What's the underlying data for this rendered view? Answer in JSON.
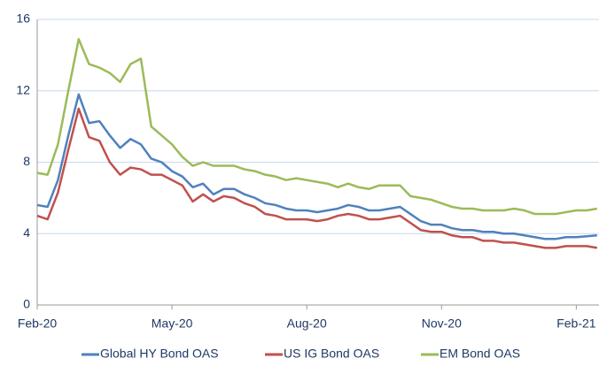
{
  "chart_data": {
    "type": "line",
    "categories": [
      "Feb-20",
      null,
      null,
      null,
      null,
      null,
      null,
      null,
      null,
      null,
      null,
      null,
      null,
      "May-20",
      null,
      null,
      null,
      null,
      null,
      null,
      null,
      null,
      null,
      null,
      null,
      null,
      "Aug-20",
      null,
      null,
      null,
      null,
      null,
      null,
      null,
      null,
      null,
      null,
      null,
      null,
      "Nov-20",
      null,
      null,
      null,
      null,
      null,
      null,
      null,
      null,
      null,
      null,
      null,
      null,
      "Feb-21",
      null,
      null
    ],
    "series": [
      {
        "name": "Global HY Bond OAS",
        "color": "#4f81bd",
        "values": [
          5.6,
          5.5,
          7.0,
          9.5,
          11.8,
          10.2,
          10.3,
          9.5,
          8.8,
          9.3,
          9.0,
          8.2,
          8.0,
          7.5,
          7.2,
          6.6,
          6.8,
          6.2,
          6.5,
          6.5,
          6.2,
          6.0,
          5.7,
          5.6,
          5.4,
          5.3,
          5.3,
          5.2,
          5.3,
          5.4,
          5.6,
          5.5,
          5.3,
          5.3,
          5.4,
          5.5,
          5.1,
          4.7,
          4.5,
          4.5,
          4.3,
          4.2,
          4.2,
          4.1,
          4.1,
          4.0,
          4.0,
          3.9,
          3.8,
          3.7,
          3.7,
          3.8,
          3.8,
          3.85,
          3.9
        ]
      },
      {
        "name": "US IG Bond OAS",
        "color": "#c0504d",
        "values": [
          5.0,
          4.8,
          6.3,
          8.7,
          11.0,
          9.4,
          9.2,
          8.0,
          7.3,
          7.7,
          7.6,
          7.3,
          7.3,
          7.0,
          6.7,
          5.8,
          6.2,
          5.8,
          6.1,
          6.0,
          5.7,
          5.5,
          5.1,
          5.0,
          4.8,
          4.8,
          4.8,
          4.7,
          4.8,
          5.0,
          5.1,
          5.0,
          4.8,
          4.8,
          4.9,
          5.0,
          4.6,
          4.2,
          4.1,
          4.1,
          3.9,
          3.8,
          3.8,
          3.6,
          3.6,
          3.5,
          3.5,
          3.4,
          3.3,
          3.2,
          3.2,
          3.3,
          3.3,
          3.3,
          3.2
        ]
      },
      {
        "name": "EM Bond OAS",
        "color": "#9bbb59",
        "values": [
          7.4,
          7.3,
          9.0,
          12.0,
          14.9,
          13.5,
          13.3,
          13.0,
          12.5,
          13.5,
          13.8,
          10.0,
          9.5,
          9.0,
          8.3,
          7.8,
          8.0,
          7.8,
          7.8,
          7.8,
          7.6,
          7.5,
          7.3,
          7.2,
          7.0,
          7.1,
          7.0,
          6.9,
          6.8,
          6.6,
          6.8,
          6.6,
          6.5,
          6.7,
          6.7,
          6.7,
          6.1,
          6.0,
          5.9,
          5.7,
          5.5,
          5.4,
          5.4,
          5.3,
          5.3,
          5.3,
          5.4,
          5.3,
          5.1,
          5.1,
          5.1,
          5.2,
          5.3,
          5.3,
          5.4
        ]
      }
    ],
    "ylim": [
      0,
      16
    ],
    "yticks": [
      0,
      4,
      8,
      12,
      16
    ],
    "grid": true,
    "legend": "bottom"
  }
}
